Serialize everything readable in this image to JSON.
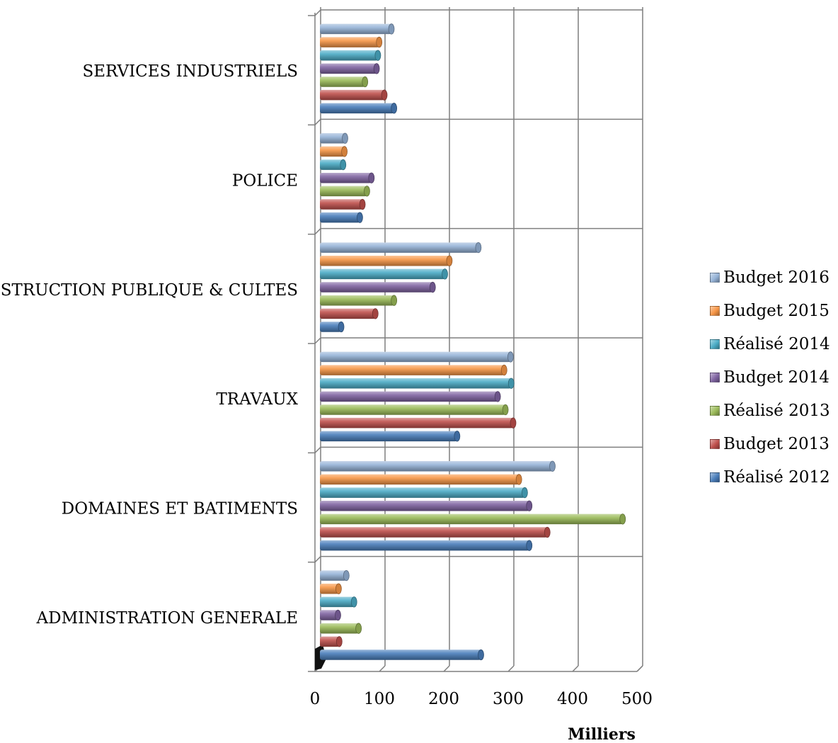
{
  "chart_data": {
    "type": "bar",
    "orientation": "horizontal",
    "categories": [
      "ADMINISTRATION GENERALE",
      "DOMAINES ET BATIMENTS",
      "TRAVAUX",
      "INSTRUCTION PUBLIQUE & CULTES",
      "POLICE",
      "SERVICES INDUSTRIELS"
    ],
    "series": [
      {
        "name": "Réalisé 2012",
        "color": "#4a7ebb",
        "values": [
          250,
          325,
          213,
          33,
          62,
          115
        ]
      },
      {
        "name": "Budget 2013",
        "color": "#c0504d",
        "values": [
          30,
          353,
          300,
          86,
          66,
          100
        ]
      },
      {
        "name": "Réalisé 2013",
        "color": "#9bbb59",
        "values": [
          60,
          470,
          288,
          115,
          73,
          70
        ]
      },
      {
        "name": "Budget 2014",
        "color": "#8064a2",
        "values": [
          28,
          325,
          276,
          175,
          80,
          88
        ]
      },
      {
        "name": "Réalisé 2014",
        "color": "#4bacc6",
        "values": [
          53,
          318,
          297,
          194,
          36,
          90
        ]
      },
      {
        "name": "Budget 2015",
        "color": "#f79646",
        "values": [
          29,
          309,
          286,
          201,
          38,
          92
        ]
      },
      {
        "name": "Budget 2016",
        "color": "#95b3d7",
        "values": [
          41,
          361,
          296,
          246,
          39,
          111
        ]
      }
    ],
    "xlim": [
      0,
      500
    ],
    "xticks": [
      "0",
      "100",
      "200",
      "300",
      "400",
      "500"
    ],
    "xlabel": "Milliers",
    "grid": true,
    "legend_position": "right"
  }
}
